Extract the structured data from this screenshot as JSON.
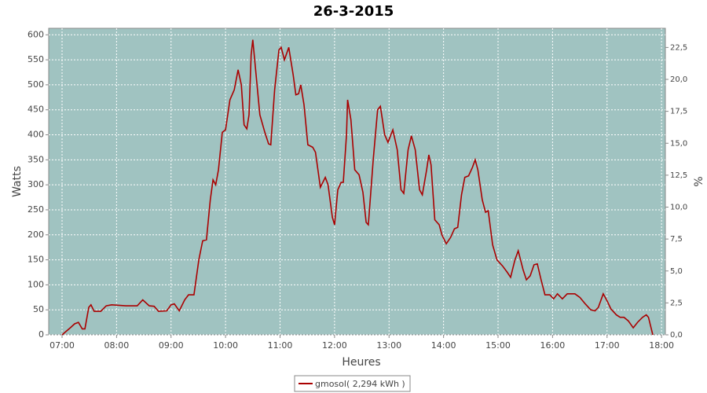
{
  "chart_data": {
    "type": "line",
    "title": "26-3-2015",
    "x_label": "Heures",
    "y_label": "Watts",
    "y2_label": "%",
    "x": [
      7.0,
      7.16,
      7.23,
      7.3,
      7.37,
      7.42,
      7.49,
      7.53,
      7.59,
      7.71,
      7.81,
      7.91,
      8.17,
      8.38,
      8.48,
      8.6,
      8.69,
      8.77,
      8.92,
      9.0,
      9.06,
      9.15,
      9.25,
      9.32,
      9.42,
      9.51,
      9.58,
      9.65,
      9.72,
      9.77,
      9.82,
      9.87,
      9.94,
      10.0,
      10.08,
      10.16,
      10.23,
      10.29,
      10.34,
      10.39,
      10.43,
      10.47,
      10.5,
      10.56,
      10.63,
      10.72,
      10.79,
      10.83,
      10.9,
      10.98,
      11.02,
      11.08,
      11.16,
      11.24,
      11.29,
      11.34,
      11.38,
      11.44,
      11.51,
      11.6,
      11.65,
      11.74,
      11.83,
      11.88,
      11.96,
      12.0,
      12.06,
      12.12,
      12.16,
      12.22,
      12.24,
      12.3,
      12.37,
      12.45,
      12.52,
      12.58,
      12.62,
      12.71,
      12.79,
      12.84,
      12.92,
      12.98,
      13.07,
      13.15,
      13.22,
      13.27,
      13.35,
      13.41,
      13.48,
      13.56,
      13.61,
      13.69,
      13.73,
      13.77,
      13.84,
      13.92,
      13.97,
      14.05,
      14.13,
      14.2,
      14.26,
      14.33,
      14.39,
      14.46,
      14.53,
      14.58,
      14.63,
      14.71,
      14.77,
      14.82,
      14.9,
      14.98,
      15.08,
      15.17,
      15.23,
      15.31,
      15.37,
      15.46,
      15.52,
      15.59,
      15.66,
      15.72,
      15.79,
      15.86,
      15.95,
      16.02,
      16.09,
      16.18,
      16.27,
      16.41,
      16.5,
      16.6,
      16.7,
      16.78,
      16.84,
      16.93,
      17.0,
      17.07,
      17.17,
      17.24,
      17.31,
      17.39,
      17.48,
      17.56,
      17.65,
      17.72,
      17.76,
      17.84
    ],
    "series": [
      {
        "name": "gmosol( 2,294 kWh )",
        "color": "#aa0000",
        "values": [
          0,
          15,
          22,
          25,
          12,
          12,
          55,
          60,
          47,
          47,
          58,
          60,
          58,
          58,
          70,
          58,
          57,
          47,
          48,
          60,
          62,
          48,
          70,
          80,
          80,
          150,
          188,
          190,
          270,
          310,
          300,
          330,
          405,
          410,
          470,
          490,
          530,
          500,
          420,
          412,
          440,
          560,
          590,
          520,
          440,
          405,
          382,
          380,
          490,
          570,
          575,
          550,
          575,
          520,
          480,
          482,
          500,
          460,
          380,
          375,
          365,
          295,
          315,
          300,
          235,
          220,
          290,
          305,
          305,
          400,
          470,
          430,
          330,
          320,
          285,
          225,
          220,
          350,
          450,
          457,
          400,
          385,
          410,
          370,
          290,
          283,
          370,
          398,
          370,
          290,
          280,
          330,
          360,
          340,
          230,
          220,
          200,
          182,
          195,
          212,
          215,
          280,
          315,
          318,
          335,
          350,
          330,
          270,
          245,
          248,
          180,
          150,
          138,
          125,
          115,
          150,
          168,
          130,
          110,
          118,
          140,
          142,
          110,
          80,
          80,
          72,
          82,
          72,
          82,
          82,
          75,
          62,
          50,
          48,
          55,
          82,
          68,
          52,
          40,
          35,
          35,
          28,
          14,
          25,
          35,
          40,
          35,
          0
        ]
      }
    ],
    "xlim": [
      6.755,
      18.07
    ],
    "xticks": [
      {
        "value": 7,
        "label": "07:00"
      },
      {
        "value": 8,
        "label": "08:00"
      },
      {
        "value": 9,
        "label": "09:00"
      },
      {
        "value": 10,
        "label": "10:00"
      },
      {
        "value": 11,
        "label": "11:00"
      },
      {
        "value": 12,
        "label": "12:00"
      },
      {
        "value": 13,
        "label": "13:00"
      },
      {
        "value": 14,
        "label": "14:00"
      },
      {
        "value": 15,
        "label": "15:00"
      },
      {
        "value": 16,
        "label": "16:00"
      },
      {
        "value": 17,
        "label": "17:00"
      },
      {
        "value": 18,
        "label": "18:00"
      }
    ],
    "ylim": [
      0,
      613
    ],
    "yticks": [
      0,
      50,
      100,
      150,
      200,
      250,
      300,
      350,
      400,
      450,
      500,
      550,
      600
    ],
    "y2lim": [
      0,
      24
    ],
    "y2ticks": [
      {
        "value": 0,
        "label": "0,0"
      },
      {
        "value": 2.5,
        "label": "2,5"
      },
      {
        "value": 5,
        "label": "5,0"
      },
      {
        "value": 7.5,
        "label": "7,5"
      },
      {
        "value": 10,
        "label": "10,0"
      },
      {
        "value": 12.5,
        "label": "12,5"
      },
      {
        "value": 15,
        "label": "15,0"
      },
      {
        "value": 17.5,
        "label": "17,5"
      },
      {
        "value": 20,
        "label": "20,0"
      },
      {
        "value": 22.5,
        "label": "22,5"
      }
    ],
    "grid": true,
    "legend": "bottom",
    "plot_background": "#a0c3c1"
  }
}
